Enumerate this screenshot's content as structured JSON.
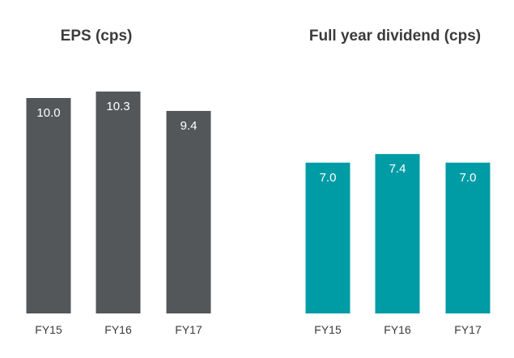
{
  "chart_data": [
    {
      "type": "bar",
      "title": "EPS (cps)",
      "categories": [
        "FY15",
        "FY16",
        "FY17"
      ],
      "values": [
        10.0,
        10.3,
        9.4
      ],
      "value_labels": [
        "10.0",
        "10.3",
        "9.4"
      ],
      "color": "#545759",
      "grid": false
    },
    {
      "type": "bar",
      "title": "Full year dividend (cps)",
      "categories": [
        "FY15",
        "FY16",
        "FY17"
      ],
      "values": [
        7.0,
        7.4,
        7.0
      ],
      "value_labels": [
        "7.0",
        "7.4",
        "7.0"
      ],
      "color": "#009ca6",
      "grid": false
    }
  ]
}
